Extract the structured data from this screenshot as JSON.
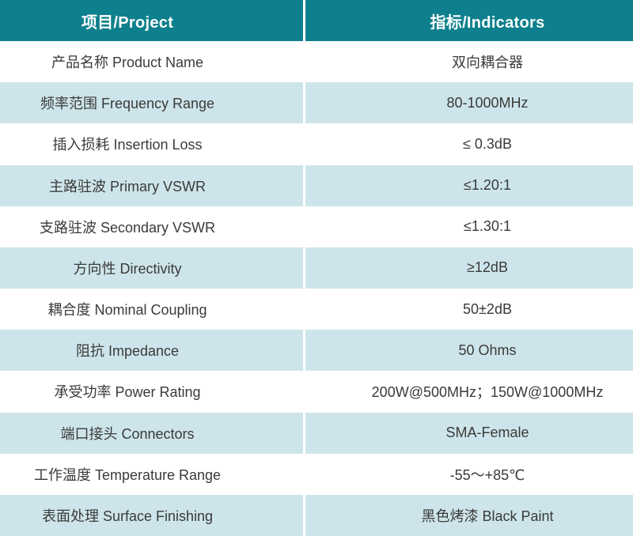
{
  "table": {
    "header": {
      "project": "项目/Project",
      "indicators": "指标/Indicators"
    },
    "rows": [
      {
        "project": "产品名称 Product Name",
        "indicator": "双向耦合器"
      },
      {
        "project": "频率范围 Frequency Range",
        "indicator": "80-1000MHz"
      },
      {
        "project": "插入损耗 Insertion Loss",
        "indicator": "≤ 0.3dB"
      },
      {
        "project": "主路驻波 Primary VSWR",
        "indicator": "≤1.20:1"
      },
      {
        "project": "支路驻波 Secondary VSWR",
        "indicator": "≤1.30:1"
      },
      {
        "project": "方向性 Directivity",
        "indicator": "≥12dB"
      },
      {
        "project": "耦合度 Nominal Coupling",
        "indicator": "50±2dB"
      },
      {
        "project": "阻抗 Impedance",
        "indicator": "50 Ohms"
      },
      {
        "project": "承受功率 Power Rating",
        "indicator": "200W@500MHz；150W@1000MHz"
      },
      {
        "project": "端口接头 Connectors",
        "indicator": "SMA-Female"
      },
      {
        "project": "工作温度 Temperature Range",
        "indicator": "-55～+85℃"
      },
      {
        "project": "表面处理 Surface Finishing",
        "indicator": "黑色烤漆 Black Paint"
      }
    ],
    "colors": {
      "header_bg": "#0e808d",
      "header_text": "#ffffff",
      "stripe_bg": "#cde5ea",
      "plain_bg": "#ffffff",
      "body_text": "#3a3a3a",
      "divider": "#ffffff"
    }
  }
}
